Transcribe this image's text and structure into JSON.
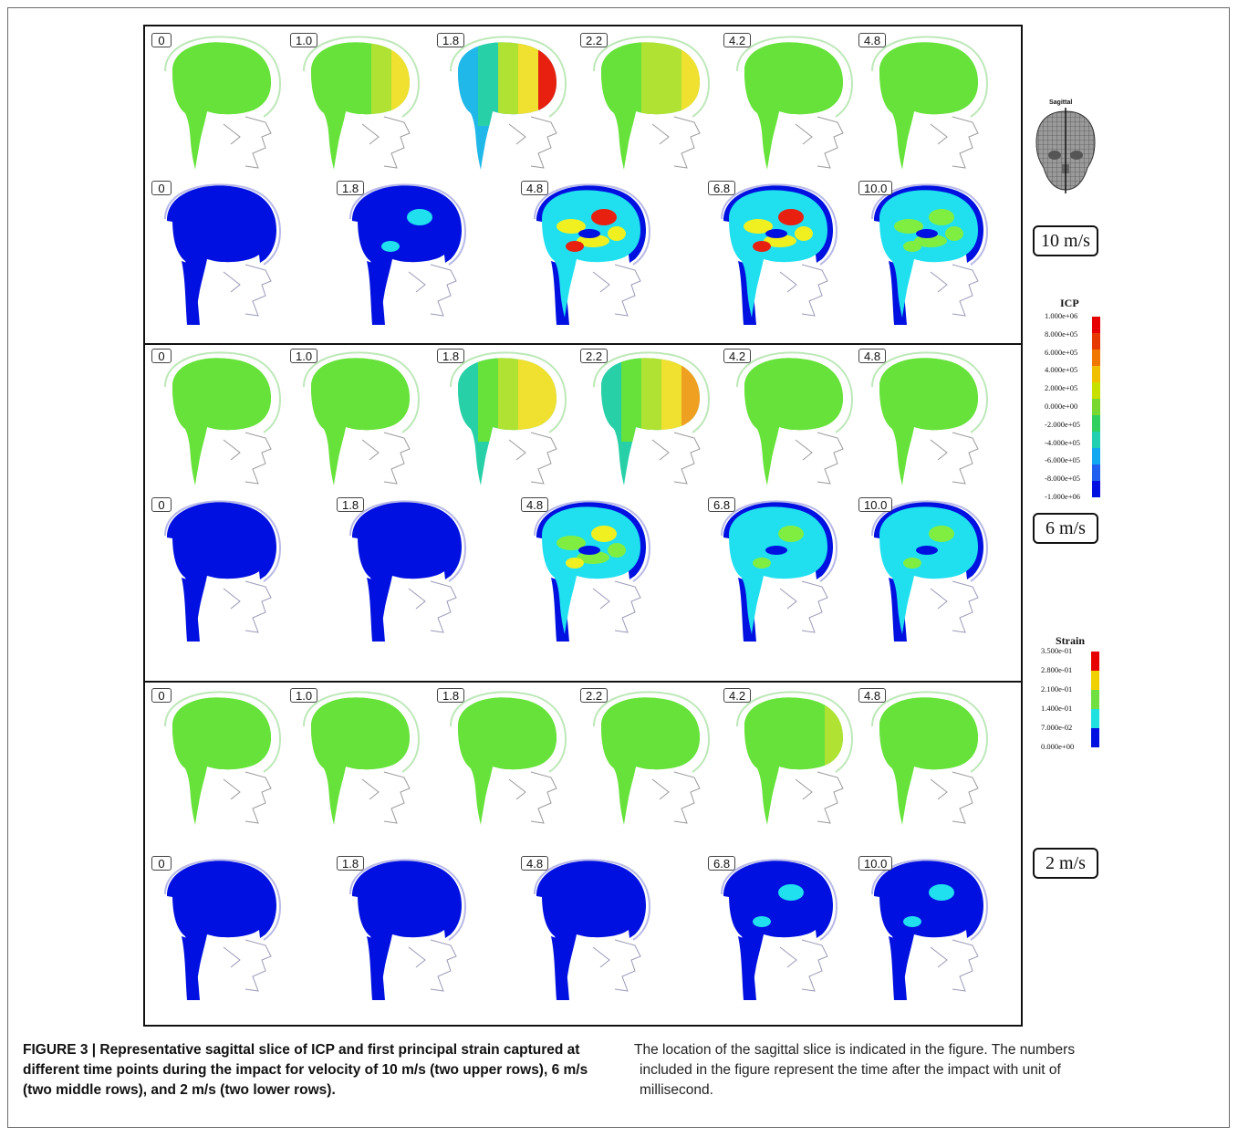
{
  "figure": {
    "rows": [
      {
        "velocity": "10 m/s",
        "kind": "icp",
        "times": [
          "0",
          "1.0",
          "1.8",
          "2.2",
          "4.2",
          "4.8"
        ],
        "fields": [
          [
            0,
            0,
            0,
            0,
            0
          ],
          [
            0,
            0,
            0,
            1,
            2
          ],
          [
            -2,
            -1,
            1,
            2,
            4
          ],
          [
            0,
            0,
            1,
            1,
            2
          ],
          [
            0,
            0,
            0,
            0,
            0
          ],
          [
            0,
            0,
            0,
            0,
            0
          ]
        ]
      },
      {
        "velocity": "10 m/s",
        "kind": "strain",
        "times": [
          "0",
          "1.8",
          "4.8",
          "6.8",
          "10.0"
        ],
        "fields": [
          [
            0,
            0,
            0
          ],
          [
            0,
            0,
            1
          ],
          [
            1,
            3,
            4
          ],
          [
            1,
            3,
            4
          ],
          [
            1,
            2,
            2
          ]
        ]
      },
      {
        "velocity": "6 m/s",
        "kind": "icp",
        "times": [
          "0",
          "1.0",
          "1.8",
          "2.2",
          "4.2",
          "4.8"
        ],
        "fields": [
          [
            0,
            0,
            0,
            0,
            0
          ],
          [
            0,
            0,
            0,
            0,
            0
          ],
          [
            -1,
            0,
            1,
            2,
            2
          ],
          [
            -1,
            0,
            1,
            2,
            3
          ],
          [
            0,
            0,
            0,
            0,
            0
          ],
          [
            0,
            0,
            0,
            0,
            0
          ]
        ]
      },
      {
        "velocity": "6 m/s",
        "kind": "strain",
        "times": [
          "0",
          "1.8",
          "4.8",
          "6.8",
          "10.0"
        ],
        "fields": [
          [
            0,
            0,
            0
          ],
          [
            0,
            0,
            0
          ],
          [
            1,
            2,
            3
          ],
          [
            1,
            1,
            2
          ],
          [
            1,
            1,
            2
          ]
        ]
      },
      {
        "velocity": "2 m/s",
        "kind": "icp",
        "times": [
          "0",
          "1.0",
          "1.8",
          "2.2",
          "4.2",
          "4.8"
        ],
        "fields": [
          [
            0,
            0,
            0,
            0,
            0
          ],
          [
            0,
            0,
            0,
            0,
            0
          ],
          [
            0,
            0,
            0,
            0,
            0
          ],
          [
            0,
            0,
            0,
            0,
            0
          ],
          [
            0,
            0,
            0,
            0,
            1
          ],
          [
            0,
            0,
            0,
            0,
            0
          ]
        ]
      },
      {
        "velocity": "2 m/s",
        "kind": "strain",
        "times": [
          "0",
          "1.8",
          "4.8",
          "6.8",
          "10.0"
        ],
        "fields": [
          [
            0,
            0,
            0
          ],
          [
            0,
            0,
            0
          ],
          [
            0,
            0,
            0
          ],
          [
            0,
            0,
            1
          ],
          [
            0,
            0,
            1
          ]
        ]
      }
    ],
    "speed_labels": [
      "10 m/s",
      "6 m/s",
      "2 m/s"
    ],
    "sagittal_label": "Sagittal",
    "icp_legend": {
      "title": "ICP",
      "ticks": [
        "1.000e+06",
        "8.000e+05",
        "6.000e+05",
        "4.000e+05",
        "2.000e+05",
        "0.000e+00",
        "-2.000e+05",
        "-4.000e+05",
        "-6.000e+05",
        "-8.000e+05",
        "-1.000e+06"
      ],
      "colors": [
        "#e60000",
        "#e63a00",
        "#f07800",
        "#f0c000",
        "#c8e000",
        "#78d830",
        "#30d060",
        "#20d0b0",
        "#10a8f0",
        "#2060f0",
        "#0010e0"
      ]
    },
    "strain_legend": {
      "title": "Strain",
      "ticks": [
        "3.500e-01",
        "2.800e-01",
        "2.100e-01",
        "1.400e-01",
        "7.000e-02",
        "0.000e+00"
      ],
      "colors": [
        "#e60000",
        "#f0d000",
        "#70e040",
        "#20e0e0",
        "#0010e0"
      ]
    },
    "icp_palette": {
      "-2": "#20b8e8",
      "-1": "#28d0a8",
      "0": "#66e23a",
      "1": "#b0e234",
      "2": "#f0e030",
      "3": "#f0a020",
      "4": "#e82010"
    },
    "strain_palette": {
      "0": "#0010e0",
      "1": "#20e0f0",
      "2": "#80ee40",
      "3": "#f0f020",
      "4": "#e82010"
    }
  },
  "caption": {
    "left": "FIGURE 3 | Representative sagittal slice of ICP and first principal strain captured at different time points during the impact for velocity of 10 m/s (two upper rows), 6 m/s (two middle rows), and 2 m/s (two lower rows).",
    "right_line1": "The location of the sagittal slice is indicated in the figure. The numbers",
    "right_line2": "included in the figure represent the time after the impact with unit of",
    "right_line3": "millisecond."
  }
}
